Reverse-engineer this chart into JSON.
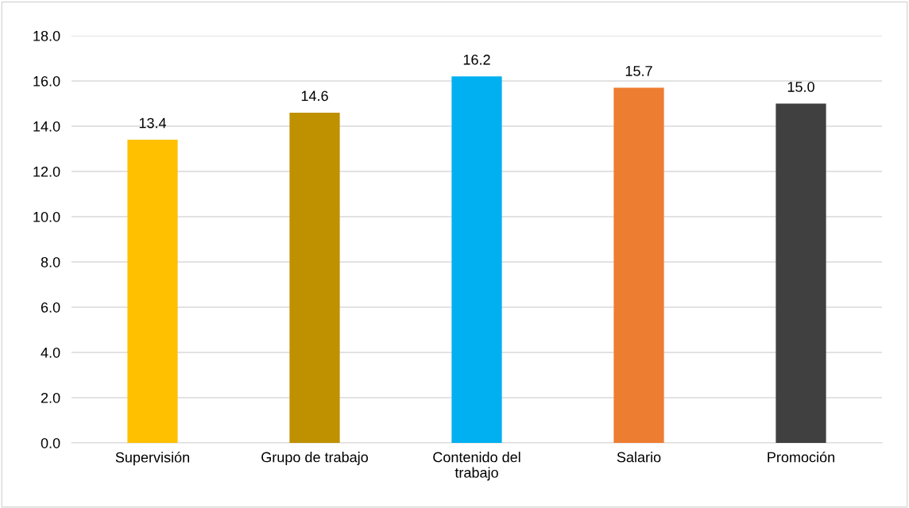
{
  "chart_data": {
    "type": "bar",
    "categories": [
      "Supervisión",
      "Grupo de trabajo",
      "Contenido del trabajo",
      "Salario",
      "Promoción"
    ],
    "values": [
      13.4,
      14.6,
      16.2,
      15.7,
      15.0
    ],
    "colors": [
      "#ffc000",
      "#bf9000",
      "#00b0f0",
      "#ed7d31",
      "#404040"
    ],
    "ylim": [
      0,
      18
    ],
    "yticks": [
      {
        "value": 0,
        "label": "0.0"
      },
      {
        "value": 2,
        "label": "2.0"
      },
      {
        "value": 4,
        "label": "4.0"
      },
      {
        "value": 6,
        "label": "6.0"
      },
      {
        "value": 8,
        "label": "8.0"
      },
      {
        "value": 10,
        "label": "10.0"
      },
      {
        "value": 12,
        "label": "12.0"
      },
      {
        "value": 14,
        "label": "14.0"
      },
      {
        "value": 16,
        "label": "16.0"
      },
      {
        "value": 18,
        "label": "18.0"
      }
    ],
    "grid": "y",
    "value_labels": [
      "13.4",
      "14.6",
      "16.2",
      "15.7",
      "15.0"
    ]
  }
}
